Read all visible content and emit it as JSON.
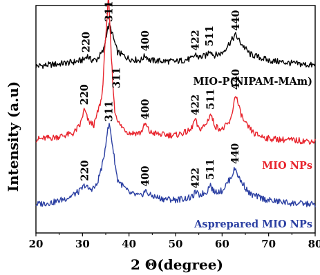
{
  "chart_data": {
    "type": "line",
    "xlabel": "2 Θ(degree)",
    "ylabel": "Intensity (a.u)",
    "xlim": [
      20,
      80
    ],
    "x_ticks": [
      20,
      30,
      40,
      50,
      60,
      70,
      80
    ],
    "y_ticks_labels": "none",
    "grid": false,
    "legend": "none",
    "series": [
      {
        "name": "MIO-P(NIPAM-MAm)",
        "color": "#000000",
        "level": 3,
        "x": [
          20,
          24,
          28,
          30.3,
          31.0,
          31.8,
          33,
          34.5,
          35.3,
          35.8,
          36.4,
          37.5,
          40,
          42.5,
          43.5,
          44.5,
          47,
          50,
          53.5,
          54.3,
          55.0,
          56.7,
          57.4,
          58.2,
          60,
          61.8,
          62.9,
          64.0,
          66,
          70,
          75,
          80
        ],
        "y": [
          0.5,
          0.8,
          1.2,
          1.6,
          2.4,
          1.6,
          1.6,
          3.2,
          6.8,
          7.8,
          6.2,
          3.0,
          1.8,
          1.5,
          2.4,
          1.5,
          1.4,
          1.3,
          1.8,
          2.6,
          2.0,
          2.4,
          3.4,
          2.4,
          2.8,
          4.8,
          6.0,
          4.6,
          2.6,
          1.5,
          1.0,
          0.6
        ]
      },
      {
        "name": "MIO NPs",
        "color": "#e8232c",
        "level": 2,
        "x": [
          20,
          24,
          28,
          29.5,
          30.4,
          31.3,
          32.5,
          34.2,
          35.0,
          35.6,
          36.2,
          36.9,
          38,
          40,
          42.5,
          43.5,
          44.5,
          47,
          50,
          53.2,
          54.2,
          55.0,
          56.5,
          57.5,
          58.5,
          60,
          61.8,
          62.9,
          63.8,
          64.8,
          67,
          70,
          75,
          80
        ],
        "y": [
          0.5,
          0.8,
          1.5,
          3.0,
          5.8,
          3.6,
          3.0,
          8.0,
          19.0,
          25.5,
          15.0,
          5.5,
          3.0,
          1.6,
          1.6,
          3.2,
          1.7,
          1.3,
          1.2,
          2.0,
          4.0,
          2.2,
          3.0,
          5.0,
          2.8,
          2.2,
          3.6,
          8.5,
          5.6,
          3.4,
          1.4,
          0.6,
          0.3,
          0.1
        ]
      },
      {
        "name": "Asprepared MIO NPs",
        "color": "#2b3fa2",
        "level": 1,
        "x": [
          20,
          24,
          27,
          29.5,
          30.5,
          31.5,
          33,
          34.5,
          35.3,
          35.8,
          36.5,
          37.5,
          40,
          42.5,
          43.5,
          44.5,
          47,
          50,
          53.5,
          54.3,
          55.0,
          56.7,
          57.4,
          58.2,
          60,
          61.8,
          62.8,
          63.8,
          66,
          70,
          75,
          80
        ],
        "y": [
          0.8,
          1.2,
          2.0,
          3.2,
          4.2,
          3.4,
          4.0,
          8.5,
          13.5,
          15.0,
          11.0,
          5.2,
          2.8,
          2.2,
          3.2,
          2.4,
          1.8,
          1.6,
          2.0,
          3.0,
          2.4,
          3.0,
          4.4,
          3.0,
          3.2,
          5.4,
          7.2,
          5.2,
          2.6,
          1.5,
          1.0,
          0.8
        ]
      }
    ],
    "annotations": [
      {
        "series": 0,
        "label": "220",
        "x": 30.8
      },
      {
        "series": 0,
        "label": "311",
        "x": 35.7
      },
      {
        "series": 0,
        "label": "400",
        "x": 43.5
      },
      {
        "series": 0,
        "label": "422",
        "x": 54.2
      },
      {
        "series": 0,
        "label": "511",
        "x": 57.3
      },
      {
        "series": 0,
        "label": "440",
        "x": 62.9
      },
      {
        "series": 1,
        "label": "220",
        "x": 30.4
      },
      {
        "series": 1,
        "label": "311",
        "x": 37.3
      },
      {
        "series": 1,
        "label": "400",
        "x": 43.5
      },
      {
        "series": 1,
        "label": "422",
        "x": 54.2
      },
      {
        "series": 1,
        "label": "511",
        "x": 57.5
      },
      {
        "series": 1,
        "label": "440",
        "x": 62.9
      },
      {
        "series": 2,
        "label": "220",
        "x": 30.5
      },
      {
        "series": 2,
        "label": "311",
        "x": 35.7
      },
      {
        "series": 2,
        "label": "400",
        "x": 43.5
      },
      {
        "series": 2,
        "label": "422",
        "x": 54.2
      },
      {
        "series": 2,
        "label": "511",
        "x": 57.4
      },
      {
        "series": 2,
        "label": "440",
        "x": 62.8
      }
    ]
  }
}
